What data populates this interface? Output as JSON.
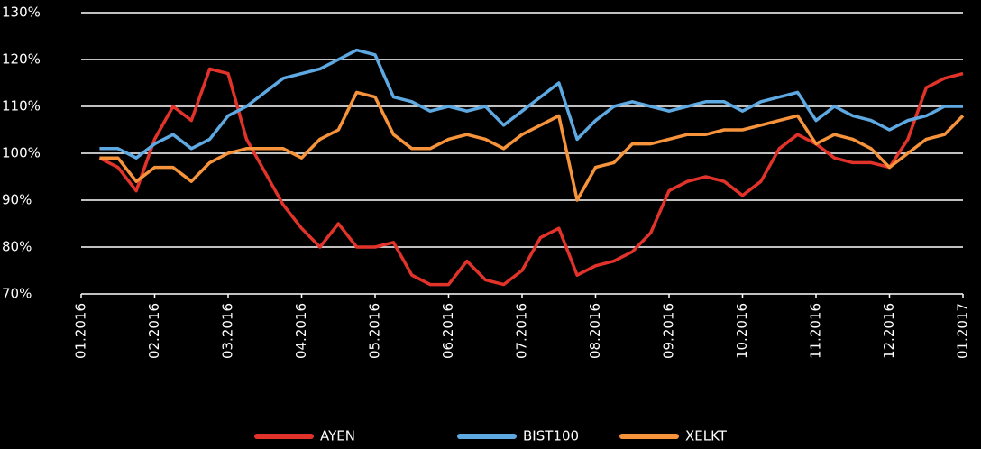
{
  "chart_data": {
    "type": "line",
    "x": [
      0.25,
      0.5,
      0.75,
      1,
      1.25,
      1.5,
      1.75,
      2,
      2.25,
      2.5,
      2.75,
      3,
      3.25,
      3.5,
      3.75,
      4,
      4.25,
      4.5,
      4.75,
      5,
      5.25,
      5.5,
      5.75,
      6,
      6.25,
      6.5,
      6.75,
      7,
      7.25,
      7.5,
      7.75,
      8,
      8.25,
      8.5,
      8.75,
      9,
      9.25,
      9.5,
      9.75,
      10,
      10.25,
      10.5,
      10.75,
      11,
      11.25,
      11.5,
      11.75,
      12
    ],
    "series": [
      {
        "name": "AYEN",
        "color": "#e2332b",
        "values": [
          99,
          97,
          92,
          103,
          110,
          107,
          118,
          117,
          103,
          96,
          89,
          84,
          80,
          85,
          80,
          80,
          81,
          74,
          72,
          72,
          77,
          73,
          72,
          75,
          82,
          84,
          74,
          76,
          77,
          79,
          83,
          92,
          94,
          95,
          94,
          91,
          94,
          101,
          104,
          102,
          99,
          98,
          98,
          97,
          103,
          114,
          116,
          117
        ]
      },
      {
        "name": "BIST100",
        "color": "#5ea9e2",
        "values": [
          101,
          101,
          99,
          102,
          104,
          101,
          103,
          108,
          110,
          113,
          116,
          117,
          118,
          120,
          122,
          121,
          112,
          111,
          109,
          110,
          109,
          110,
          106,
          109,
          112,
          115,
          103,
          107,
          110,
          111,
          110,
          109,
          110,
          111,
          111,
          109,
          111,
          112,
          113,
          107,
          110,
          108,
          107,
          105,
          107,
          108,
          110,
          110
        ]
      },
      {
        "name": "XELKT",
        "color": "#f7943b",
        "values": [
          99,
          99,
          94,
          97,
          97,
          94,
          98,
          100,
          101,
          101,
          101,
          99,
          103,
          105,
          113,
          112,
          104,
          101,
          101,
          103,
          104,
          103,
          101,
          104,
          106,
          108,
          90,
          97,
          98,
          102,
          102,
          103,
          104,
          104,
          105,
          105,
          106,
          107,
          108,
          102,
          104,
          103,
          101,
          97,
          100,
          103,
          104,
          108
        ]
      }
    ],
    "xlim": [
      0,
      12
    ],
    "xticks": [
      {
        "value": 0,
        "label": "01.2016"
      },
      {
        "value": 1,
        "label": "02.2016"
      },
      {
        "value": 2,
        "label": "03.2016"
      },
      {
        "value": 3,
        "label": "04.2016"
      },
      {
        "value": 4,
        "label": "05.2016"
      },
      {
        "value": 5,
        "label": "06.2016"
      },
      {
        "value": 6,
        "label": "07.2016"
      },
      {
        "value": 7,
        "label": "08.2016"
      },
      {
        "value": 8,
        "label": "09.2016"
      },
      {
        "value": 9,
        "label": "10.2016"
      },
      {
        "value": 10,
        "label": "11.2016"
      },
      {
        "value": 11,
        "label": "12.2016"
      },
      {
        "value": 12,
        "label": "01.2017"
      }
    ],
    "ylim": [
      70,
      130
    ],
    "yticks": [
      {
        "value": 70,
        "label": "70%"
      },
      {
        "value": 80,
        "label": "80%"
      },
      {
        "value": 90,
        "label": "90%"
      },
      {
        "value": 100,
        "label": "100%"
      },
      {
        "value": 110,
        "label": "110%"
      },
      {
        "value": 120,
        "label": "120%"
      },
      {
        "value": 130,
        "label": "130%"
      }
    ],
    "grid": true,
    "legend": "bottom"
  }
}
